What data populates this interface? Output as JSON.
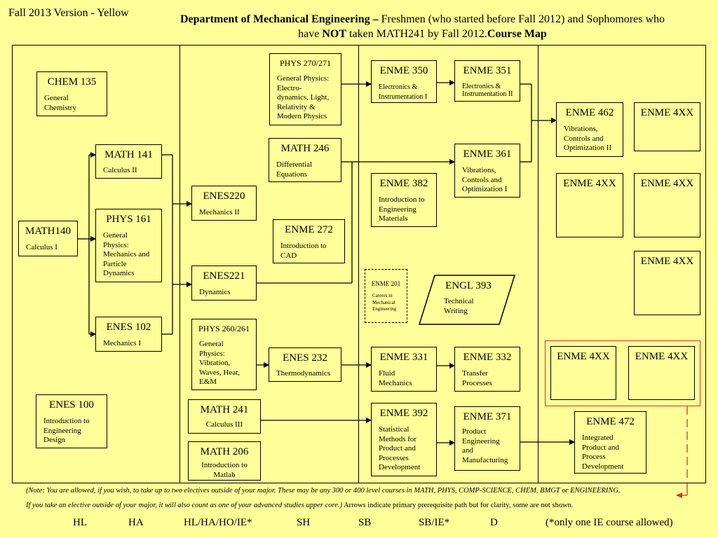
{
  "version": "Fall 2013 Version - Yellow",
  "title": {
    "dept": "Department of Mechanical Engineering –",
    "line1_rest": " Freshmen (who started before Fall 2012) and Sophomores who",
    "line2_pre": "have ",
    "line2_not": "NOT",
    "line2_mid": " taken MATH241 by Fall 2012.",
    "line2_bold": "Course Map"
  },
  "courses": {
    "chem135": {
      "code": "CHEM 135",
      "desc": "General\nChemistry"
    },
    "math141": {
      "code": "MATH 141",
      "desc": "Calculus II"
    },
    "phys161": {
      "code": "PHYS 161",
      "desc": "General\nPhysics:\nMechanics and\nParticle\nDynamics"
    },
    "math140": {
      "code": "MATH140",
      "desc": "Calculus I"
    },
    "enes102": {
      "code": "ENES 102",
      "desc": "Mechanics I"
    },
    "enes100": {
      "code": "ENES 100",
      "desc": "Introduction to\nEngineering\nDesign"
    },
    "phys270": {
      "code": "PHYS 270/271",
      "desc": "General Physics:\nElectro-\ndynamics, Light,\nRelativity &\nModern Physics"
    },
    "math246": {
      "code": "MATH 246",
      "desc": "Differential\nEquations"
    },
    "enes220": {
      "code": "ENES220",
      "desc": "Mechanics II"
    },
    "enme272": {
      "code": "ENME 272",
      "desc": "Introduction to\nCAD"
    },
    "enes221": {
      "code": "ENES221",
      "desc": "Dynamics"
    },
    "phys260": {
      "code": "PHYS 260/261",
      "desc": "General\nPhysics:\nVibration,\nWaves,  Heat,\nE&M"
    },
    "enes232": {
      "code": "ENES 232",
      "desc": "Thermodynamics"
    },
    "math241": {
      "code": "MATH 241",
      "desc": "Calculus III"
    },
    "math206": {
      "code": "MATH 206",
      "desc": "Introduction to\nMatlab"
    },
    "enme350": {
      "code": "ENME 350",
      "desc": "Electronics &\nInstrumentation I"
    },
    "enme351": {
      "code": "ENME 351",
      "desc": "Electronics &\nInstrumentation II"
    },
    "enme361": {
      "code": "ENME 361",
      "desc": "Vibrations,\nControls and\nOptimization I"
    },
    "enme382": {
      "code": "ENME 382",
      "desc": "Introduction to\nEngineering\nMaterials"
    },
    "enme201": {
      "code": "ENME 201",
      "desc": "Careers in\nMechanical\nEngineering"
    },
    "engl393": {
      "code": "ENGL 393",
      "desc": "Technical\nWriting"
    },
    "enme331": {
      "code": "ENME 331",
      "desc": "Fluid\nMechanics"
    },
    "enme332": {
      "code": "ENME 332",
      "desc": "Transfer\nProcesses"
    },
    "enme392": {
      "code": "ENME 392",
      "desc": "Statistical\nMethods for\nProduct and\nProcesses\nDevelopment"
    },
    "enme371": {
      "code": "ENME 371",
      "desc": "Product\nEngineering\nand\nManufacturing"
    },
    "enme462": {
      "code": "ENME 462",
      "desc": "Vibrations,\nControls and\nOptimization II"
    },
    "enme472": {
      "code": "ENME 472",
      "desc": "Integrated\nProduct and\nProcess\nDevelopment"
    },
    "enme4xx": {
      "code": "ENME 4XX"
    }
  },
  "notes": {
    "line1": "(Note: You are allowed, if you wish, to take up to two electives outside of your major. These may be any 300 or 400 level courses in MATH, PHYS, COMP-SCIENCE, CHEM, BMGT or ENGINEERING.",
    "line2_italic": "If you take an elective outside of your major, it will also count as one of your advanced studies upper core.)",
    "line2_normal": " Arrows indicate primary prerequisite path but for clarity, some are not shown."
  },
  "footer": [
    "HL",
    "HA",
    "HL/HA/HO/IE*",
    "SH",
    "SB",
    "SB/IE*",
    "D",
    "(*only one IE  course allowed)"
  ],
  "colors": {
    "background": "#ffff99",
    "elective_frame": "#e03020"
  }
}
